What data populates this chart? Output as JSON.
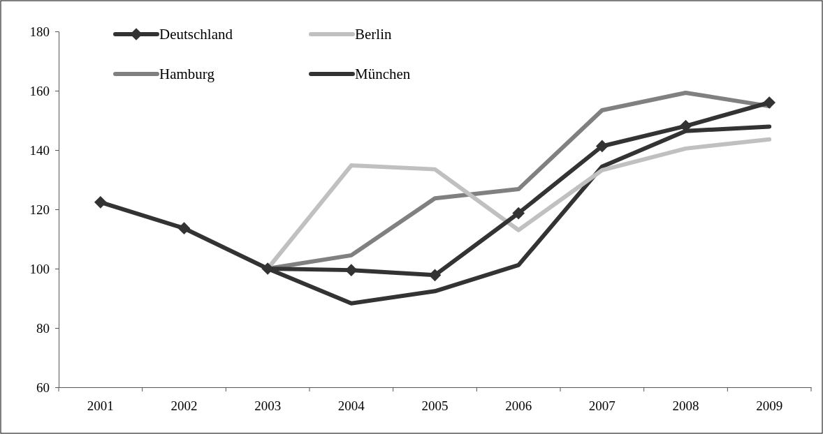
{
  "chart_data": {
    "type": "line",
    "categories": [
      "2001",
      "2002",
      "2003",
      "2004",
      "2005",
      "2006",
      "2007",
      "2008",
      "2009"
    ],
    "ylim": [
      60,
      180
    ],
    "yticks": [
      60,
      80,
      100,
      120,
      140,
      160,
      180
    ],
    "grid": false,
    "legend": "top",
    "line_style": "solid",
    "series": [
      {
        "name": "Deutschland",
        "color": "#333333",
        "marker": "diamond",
        "values": [
          122.4,
          113.6,
          100,
          99.5,
          97.8,
          118.7,
          141.3,
          148.1,
          156.0
        ]
      },
      {
        "name": "Berlin",
        "color": "#c0c0c0",
        "marker": "none",
        "values": [
          null,
          null,
          100,
          134.8,
          133.5,
          113,
          133.2,
          140.5,
          143.6
        ]
      },
      {
        "name": "Hamburg",
        "color": "#808080",
        "marker": "none",
        "values": [
          null,
          null,
          100,
          104.5,
          123.7,
          126.8,
          153.4,
          159.3,
          154.8
        ]
      },
      {
        "name": "München",
        "color": "#333333",
        "marker": "none",
        "values": [
          null,
          null,
          100,
          88.3,
          92.4,
          101.2,
          134.4,
          146.4,
          147.9
        ]
      }
    ]
  }
}
